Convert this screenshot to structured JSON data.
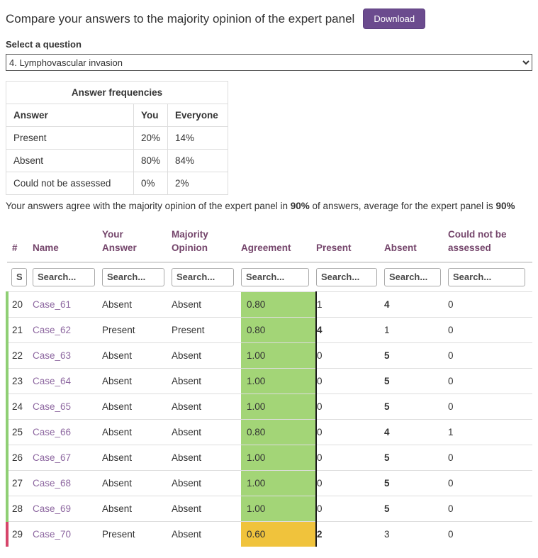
{
  "page": {
    "title": "Compare your answers to the majority opinion of the expert panel",
    "download_label": "Download"
  },
  "question_select": {
    "label": "Select a question",
    "selected": "4. Lymphovascular invasion"
  },
  "frequencies": {
    "title": "Answer frequencies",
    "columns": [
      "Answer",
      "You",
      "Everyone"
    ],
    "rows": [
      {
        "answer": "Present",
        "you": "20%",
        "everyone": "14%"
      },
      {
        "answer": "Absent",
        "you": "80%",
        "everyone": "84%"
      },
      {
        "answer": "Could not be assessed",
        "you": "0%",
        "everyone": "2%"
      }
    ]
  },
  "agreement_note": {
    "before": "Your answers agree with the majority opinion of the expert panel in ",
    "you_pct": "90%",
    "middle": " of answers, average for the expert panel is ",
    "panel_pct": "90%"
  },
  "results_table": {
    "columns": [
      "#",
      "Name",
      "Your Answer",
      "Majority Opinion",
      "Agreement",
      "Present",
      "Absent",
      "Could not be assessed"
    ],
    "search_placeholder": "Search...",
    "rows": [
      {
        "num": "20",
        "name": "Case_61",
        "your_answer": "Absent",
        "majority_opinion": "Absent",
        "agreement": "0.80",
        "agreement_level": "high",
        "present": "1",
        "absent": "4",
        "could_not_be_assessed": "0",
        "bold_column": "absent",
        "accent": "green"
      },
      {
        "num": "21",
        "name": "Case_62",
        "your_answer": "Present",
        "majority_opinion": "Present",
        "agreement": "0.80",
        "agreement_level": "high",
        "present": "4",
        "absent": "1",
        "could_not_be_assessed": "0",
        "bold_column": "present",
        "accent": "green"
      },
      {
        "num": "22",
        "name": "Case_63",
        "your_answer": "Absent",
        "majority_opinion": "Absent",
        "agreement": "1.00",
        "agreement_level": "high",
        "present": "0",
        "absent": "5",
        "could_not_be_assessed": "0",
        "bold_column": "absent",
        "accent": "green"
      },
      {
        "num": "23",
        "name": "Case_64",
        "your_answer": "Absent",
        "majority_opinion": "Absent",
        "agreement": "1.00",
        "agreement_level": "high",
        "present": "0",
        "absent": "5",
        "could_not_be_assessed": "0",
        "bold_column": "absent",
        "accent": "green"
      },
      {
        "num": "24",
        "name": "Case_65",
        "your_answer": "Absent",
        "majority_opinion": "Absent",
        "agreement": "1.00",
        "agreement_level": "high",
        "present": "0",
        "absent": "5",
        "could_not_be_assessed": "0",
        "bold_column": "absent",
        "accent": "green"
      },
      {
        "num": "25",
        "name": "Case_66",
        "your_answer": "Absent",
        "majority_opinion": "Absent",
        "agreement": "0.80",
        "agreement_level": "high",
        "present": "0",
        "absent": "4",
        "could_not_be_assessed": "1",
        "bold_column": "absent",
        "accent": "green"
      },
      {
        "num": "26",
        "name": "Case_67",
        "your_answer": "Absent",
        "majority_opinion": "Absent",
        "agreement": "1.00",
        "agreement_level": "high",
        "present": "0",
        "absent": "5",
        "could_not_be_assessed": "0",
        "bold_column": "absent",
        "accent": "green"
      },
      {
        "num": "27",
        "name": "Case_68",
        "your_answer": "Absent",
        "majority_opinion": "Absent",
        "agreement": "1.00",
        "agreement_level": "high",
        "present": "0",
        "absent": "5",
        "could_not_be_assessed": "0",
        "bold_column": "absent",
        "accent": "green"
      },
      {
        "num": "28",
        "name": "Case_69",
        "your_answer": "Absent",
        "majority_opinion": "Absent",
        "agreement": "1.00",
        "agreement_level": "high",
        "present": "0",
        "absent": "5",
        "could_not_be_assessed": "0",
        "bold_column": "absent",
        "accent": "green"
      },
      {
        "num": "29",
        "name": "Case_70",
        "your_answer": "Present",
        "majority_opinion": "Absent",
        "agreement": "0.60",
        "agreement_level": "medium",
        "present": "2",
        "absent": "3",
        "could_not_be_assessed": "0",
        "bold_column": "present",
        "accent": "red"
      }
    ]
  },
  "colors": {
    "accent_purple": "#6b4b8e",
    "table_header_text": "#74456b",
    "case_link_purple": "#8d67a0",
    "agreement_high_green": "#a3d577",
    "agreement_medium_yellow": "#f0c33c",
    "row_agree_green": "#8fcf74",
    "row_disagree_red": "#d6456a"
  }
}
